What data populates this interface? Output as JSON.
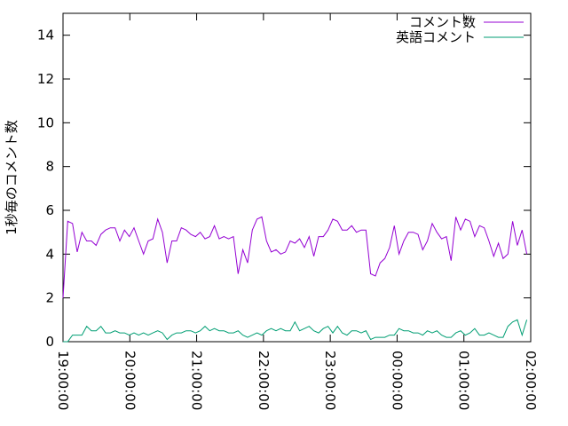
{
  "chart_data": {
    "type": "line",
    "title": "",
    "xlabel": "",
    "ylabel": "1秒毎のコメント数",
    "ylim": [
      0,
      15
    ],
    "yticks": [
      "0",
      "2",
      "4",
      "6",
      "8",
      "10",
      "12",
      "14"
    ],
    "xlim": [
      "19:00:00",
      "02:00:00"
    ],
    "xticks": [
      "19:00:00",
      "20:00:00",
      "21:00:00",
      "22:00:00",
      "23:00:00",
      "00:00:00",
      "01:00:00",
      "02:00:00"
    ],
    "grid": false,
    "legend_position": "top-right",
    "x": [
      "19:00:00",
      "19:04:15",
      "19:08:30",
      "19:12:45",
      "19:17:00",
      "19:21:15",
      "19:25:30",
      "19:29:45",
      "19:34:00",
      "19:38:15",
      "19:42:30",
      "19:46:45",
      "19:51:00",
      "19:55:15",
      "19:59:30",
      "20:03:45",
      "20:08:00",
      "20:12:15",
      "20:16:30",
      "20:20:45",
      "20:25:00",
      "20:29:15",
      "20:33:30",
      "20:37:45",
      "20:42:00",
      "20:46:15",
      "20:50:30",
      "20:54:45",
      "20:59:00",
      "21:03:15",
      "21:07:30",
      "21:11:45",
      "21:16:00",
      "21:20:15",
      "21:24:30",
      "21:28:45",
      "21:33:00",
      "21:37:15",
      "21:41:30",
      "21:45:45",
      "21:50:00",
      "21:54:15",
      "21:58:30",
      "22:02:45",
      "22:07:00",
      "22:11:15",
      "22:15:30",
      "22:19:45",
      "22:24:00",
      "22:28:15",
      "22:32:30",
      "22:36:45",
      "22:41:00",
      "22:45:15",
      "22:49:30",
      "22:53:45",
      "22:58:00",
      "23:02:15",
      "23:06:30",
      "23:10:45",
      "23:15:00",
      "23:19:15",
      "23:23:30",
      "23:27:45",
      "23:32:00",
      "23:36:15",
      "23:40:30",
      "23:44:45",
      "23:49:00",
      "23:53:15",
      "23:57:30",
      "00:01:45",
      "00:06:00",
      "00:10:15",
      "00:14:30",
      "00:18:45",
      "00:23:00",
      "00:27:15",
      "00:31:30",
      "00:35:45",
      "00:40:00",
      "00:44:15",
      "00:48:30",
      "00:52:45",
      "00:57:00",
      "01:01:15",
      "01:05:30",
      "01:09:45",
      "01:14:00",
      "01:18:15",
      "01:22:30",
      "01:26:45",
      "01:31:00",
      "01:35:15",
      "01:39:30",
      "01:43:45",
      "01:48:00",
      "01:52:15",
      "01:56:30"
    ],
    "series": [
      {
        "name": "コメント数",
        "color": "#9400d3",
        "values": [
          2.0,
          5.5,
          5.4,
          4.1,
          5.0,
          4.6,
          4.6,
          4.4,
          4.9,
          5.1,
          5.2,
          5.2,
          4.6,
          5.1,
          4.8,
          5.2,
          4.6,
          4.0,
          4.6,
          4.7,
          5.6,
          5.0,
          3.6,
          4.6,
          4.6,
          5.2,
          5.1,
          4.9,
          4.8,
          5.0,
          4.7,
          4.8,
          5.3,
          4.7,
          4.8,
          4.7,
          4.8,
          3.1,
          4.2,
          3.6,
          5.1,
          5.6,
          5.7,
          4.6,
          4.1,
          4.2,
          4.0,
          4.1,
          4.6,
          4.5,
          4.7,
          4.3,
          4.8,
          3.9,
          4.8,
          4.8,
          5.1,
          5.6,
          5.5,
          5.1,
          5.1,
          5.3,
          5.0,
          5.1,
          5.1,
          3.1,
          3.0,
          3.6,
          3.8,
          4.3,
          5.3,
          4.0,
          4.6,
          5.0,
          5.0,
          4.9,
          4.2,
          4.6,
          5.4,
          5.0,
          4.7,
          4.8,
          3.7,
          5.7,
          5.1,
          5.6,
          5.5,
          4.8,
          5.3,
          5.2,
          4.6,
          3.9,
          4.5,
          3.8,
          4.0,
          5.5,
          4.4,
          5.1,
          4.0
        ]
      },
      {
        "name": "英語コメント",
        "color": "#009e73",
        "values": [
          0,
          0,
          0.3,
          0.3,
          0.3,
          0.7,
          0.5,
          0.5,
          0.7,
          0.4,
          0.4,
          0.5,
          0.4,
          0.4,
          0.3,
          0.4,
          0.3,
          0.4,
          0.3,
          0.4,
          0.5,
          0.4,
          0.1,
          0.3,
          0.4,
          0.4,
          0.5,
          0.5,
          0.4,
          0.5,
          0.7,
          0.5,
          0.6,
          0.5,
          0.5,
          0.4,
          0.4,
          0.5,
          0.3,
          0.2,
          0.3,
          0.4,
          0.3,
          0.5,
          0.6,
          0.5,
          0.6,
          0.5,
          0.5,
          0.9,
          0.5,
          0.6,
          0.7,
          0.5,
          0.4,
          0.6,
          0.7,
          0.4,
          0.7,
          0.4,
          0.3,
          0.5,
          0.5,
          0.4,
          0.5,
          0.1,
          0.2,
          0.2,
          0.2,
          0.3,
          0.3,
          0.6,
          0.5,
          0.5,
          0.4,
          0.4,
          0.3,
          0.5,
          0.4,
          0.5,
          0.3,
          0.2,
          0.2,
          0.4,
          0.5,
          0.3,
          0.4,
          0.6,
          0.3,
          0.3,
          0.4,
          0.3,
          0.2,
          0.2,
          0.7,
          0.9,
          1.0,
          0.3,
          1.0
        ]
      }
    ]
  }
}
